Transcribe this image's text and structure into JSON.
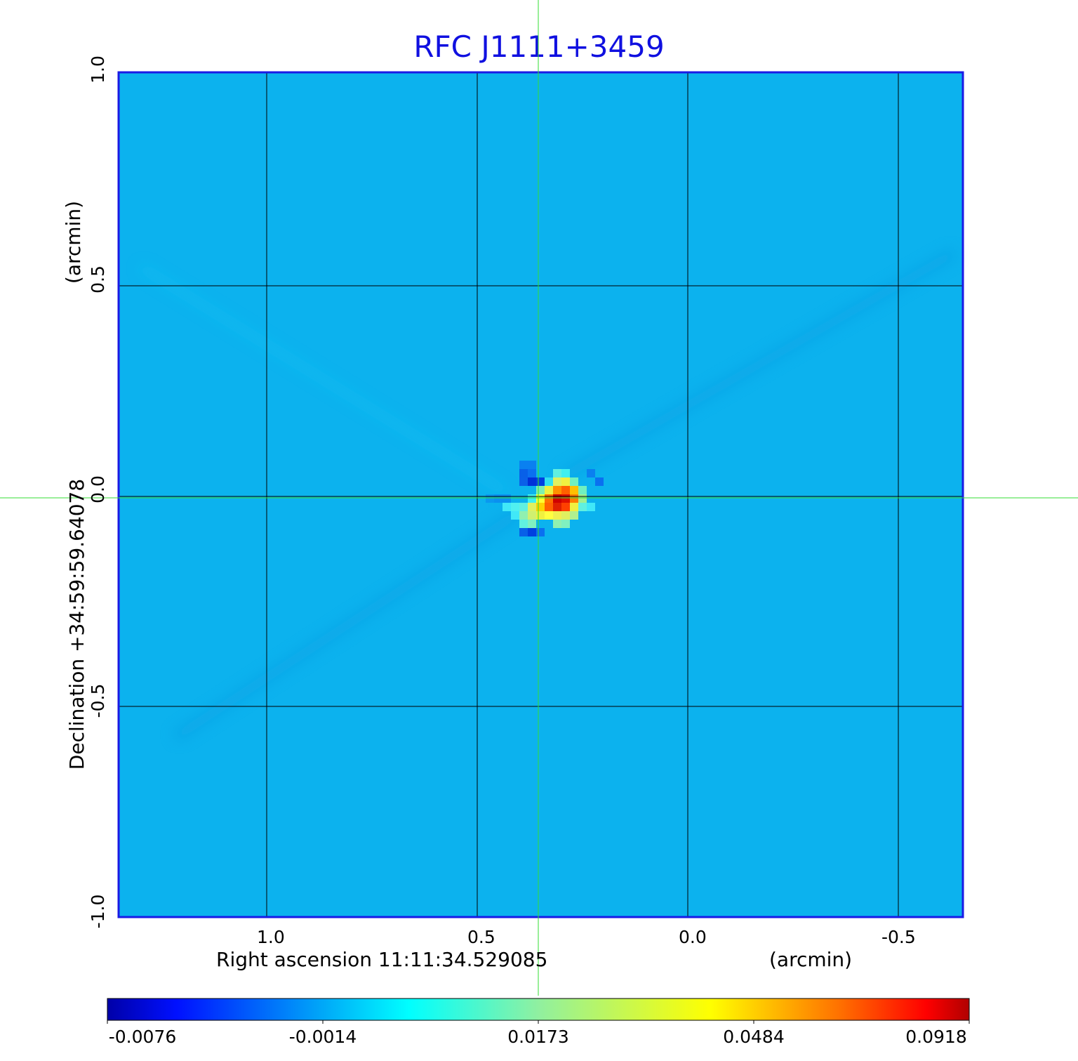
{
  "chart_data": {
    "type": "heatmap",
    "title": "RFC J1111+3459",
    "xlabel": "Right ascension  11:11:34.529085",
    "xunit": "(arcmin)",
    "ylabel": "Declination  +34:59:59.64078",
    "yunit": "(arcmin)",
    "x_ticks": [
      "1.0",
      "0.5",
      "0.0",
      "-0.5"
    ],
    "x_tick_values": [
      1.0,
      0.5,
      0.0,
      -0.5
    ],
    "y_ticks": [
      "1.0",
      "0.5",
      "0.0",
      "-0.5",
      "-1.0"
    ],
    "y_tick_values": [
      1.0,
      0.5,
      0.0,
      -0.5,
      -1.0
    ],
    "xlim": [
      1.35,
      -0.65
    ],
    "ylim": [
      -1.0,
      1.0
    ],
    "grid": true,
    "crosshair": [
      0.36,
      0.0
    ],
    "peak": {
      "x": 0.33,
      "y": 0.01,
      "value": 0.0918
    },
    "colorbar": {
      "colormap": "jet",
      "labels": [
        "-0.0076",
        "-0.0014",
        "0.0173",
        "0.0484",
        "0.0918"
      ],
      "min": -0.0076,
      "max": 0.0918
    }
  },
  "colors": {
    "title": "#1010e0",
    "frame": "#1a1ae6",
    "crosshair": "#33dd33",
    "background_map": "#0cb2ee"
  }
}
